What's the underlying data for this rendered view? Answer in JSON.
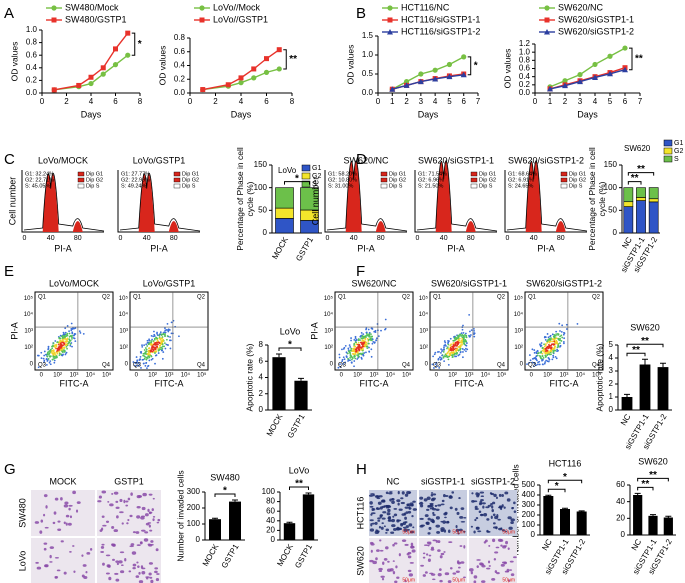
{
  "panel_letters": [
    "A",
    "B",
    "C",
    "D",
    "E",
    "F",
    "G",
    "H"
  ],
  "chart_data": [
    {
      "type": "line",
      "xlabel": "Days",
      "ylabel": "OD values",
      "x": [
        1,
        3,
        4,
        5,
        6,
        7
      ],
      "xlim": [
        0,
        8
      ],
      "xticks": [
        0,
        2,
        4,
        6,
        8
      ],
      "ylim": [
        0,
        1
      ],
      "yticks": [
        {
          "value": 0,
          "label": "0.0"
        },
        0.2,
        0.4,
        0.6,
        0.8,
        {
          "value": 1,
          "label": "1.0"
        }
      ],
      "series": [
        {
          "name": "SW480/Mock",
          "color": "#77c043",
          "marker": "circle",
          "values": [
            0.05,
            0.1,
            0.15,
            0.3,
            0.45,
            0.6
          ]
        },
        {
          "name": "SW480/GSTP1",
          "color": "#e8322b",
          "marker": "square",
          "values": [
            0.05,
            0.12,
            0.25,
            0.4,
            0.7,
            0.95
          ]
        }
      ],
      "annotations": [
        "*"
      ]
    },
    {
      "type": "line",
      "xlabel": "Days",
      "ylabel": "OD values",
      "x": [
        1,
        3,
        4,
        5,
        6,
        7
      ],
      "xlim": [
        0,
        8
      ],
      "xticks": [
        0,
        2,
        4,
        6,
        8
      ],
      "ylim": [
        0,
        0.8
      ],
      "yticks": [
        {
          "value": 0,
          "label": "0.0"
        },
        0.2,
        0.4,
        0.6,
        0.8
      ],
      "series": [
        {
          "name": "LoVo//Mock",
          "color": "#77c043",
          "marker": "circle",
          "values": [
            0.05,
            0.1,
            0.15,
            0.22,
            0.3,
            0.35
          ]
        },
        {
          "name": "LoVo//GSTP1",
          "color": "#e8322b",
          "marker": "square",
          "values": [
            0.05,
            0.12,
            0.22,
            0.35,
            0.5,
            0.63
          ]
        }
      ],
      "annotations": [
        "**"
      ]
    },
    {
      "type": "line",
      "xlabel": "Days",
      "ylabel": "OD values",
      "x": [
        1,
        2,
        3,
        4,
        5,
        6
      ],
      "xlim": [
        0,
        7
      ],
      "xticks": [
        0,
        1,
        2,
        3,
        4,
        5,
        6,
        7
      ],
      "ylim": [
        0,
        1.5
      ],
      "yticks": [
        {
          "value": 0,
          "label": "0.0"
        },
        0.5,
        {
          "value": 1,
          "label": "1.0"
        },
        1.5
      ],
      "series": [
        {
          "name": "HCT116/NC",
          "color": "#77c043",
          "marker": "circle",
          "values": [
            0.1,
            0.3,
            0.5,
            0.6,
            0.75,
            0.95
          ]
        },
        {
          "name": "HCT116/siGSTP1-1",
          "color": "#e8322b",
          "marker": "square",
          "values": [
            0.1,
            0.2,
            0.3,
            0.38,
            0.45,
            0.5
          ]
        },
        {
          "name": "HCT116/siGSTP1-2",
          "color": "#2c3fa0",
          "marker": "triangle",
          "values": [
            0.1,
            0.2,
            0.3,
            0.37,
            0.43,
            0.48
          ]
        }
      ],
      "annotations": [
        "*"
      ]
    },
    {
      "type": "line",
      "xlabel": "Days",
      "ylabel": "OD values",
      "x": [
        1,
        2,
        3,
        4,
        5,
        6
      ],
      "xlim": [
        0,
        7
      ],
      "xticks": [
        0,
        1,
        2,
        3,
        4,
        5,
        6,
        7
      ],
      "ylim": [
        0,
        1.2
      ],
      "yticks": [
        {
          "value": 0,
          "label": "0.0"
        },
        0.2,
        0.4,
        0.6,
        0.8,
        {
          "value": 1,
          "label": "1.0"
        },
        1.2
      ],
      "series": [
        {
          "name": "SW620/NC",
          "color": "#77c043",
          "marker": "circle",
          "values": [
            0.15,
            0.3,
            0.45,
            0.7,
            0.9,
            1.1
          ]
        },
        {
          "name": "SW620/siGSTP1-1",
          "color": "#e8322b",
          "marker": "square",
          "values": [
            0.1,
            0.2,
            0.3,
            0.4,
            0.5,
            0.62
          ]
        },
        {
          "name": "SW620/siGSTP1-2",
          "color": "#2c3fa0",
          "marker": "triangle",
          "values": [
            0.1,
            0.18,
            0.28,
            0.38,
            0.47,
            0.57
          ]
        }
      ],
      "annotations": [
        "**"
      ]
    },
    {
      "type": "stacked_bar",
      "title": "LoVo",
      "ylabel": "Percentage of Phase in cell cycle (%)",
      "categories": [
        "MOCK",
        "GSTP1"
      ],
      "ylim": [
        0,
        150
      ],
      "yticks": [
        0,
        50,
        100,
        150
      ],
      "legend": "top-right",
      "series": [
        {
          "name": "G1",
          "color": "#2f55c6",
          "values": [
            32.24,
            27.77
          ]
        },
        {
          "name": "G2",
          "color": "#f3e52b",
          "values": [
            22.71,
            22.99
          ]
        },
        {
          "name": "S",
          "color": "#6cc04a",
          "values": [
            45.05,
            49.24
          ]
        }
      ],
      "annotations": [
        "*"
      ]
    },
    {
      "type": "stacked_bar",
      "title": "SW620",
      "ylabel": "Percentage of Phase in cell cycle (%)",
      "categories": [
        "NC",
        "siGSTP1-1",
        "siGSTP1-2"
      ],
      "ylim": [
        0,
        150
      ],
      "yticks": [
        0,
        50,
        100,
        150
      ],
      "legend": "right",
      "series": [
        {
          "name": "G1",
          "color": "#2f55c6",
          "values": [
            58.2,
            71.54,
            68.64
          ]
        },
        {
          "name": "G2",
          "color": "#f3e52b",
          "values": [
            10.8,
            6.96,
            6.91
          ]
        },
        {
          "name": "S",
          "color": "#6cc04a",
          "values": [
            31.0,
            21.5,
            24.65
          ]
        }
      ],
      "annotations": [
        "**",
        "**"
      ]
    },
    {
      "type": "bar",
      "title": "LoVo",
      "ylabel": "Apoptotic rate (%)",
      "color": "#000000",
      "categories": [
        "MOCK",
        "GSTP1"
      ],
      "values": [
        6.5,
        3.6
      ],
      "errors": [
        0.4,
        0.3
      ],
      "ylim": [
        0,
        8
      ],
      "yticks": [
        0,
        2,
        4,
        6,
        8
      ],
      "annotations": [
        "*"
      ]
    },
    {
      "type": "bar",
      "title": "SW620",
      "ylabel": "Apoptotic rate (%)",
      "color": "#000000",
      "categories": [
        "NC",
        "siGSTP1-1",
        "siGSTP1-2"
      ],
      "values": [
        1.0,
        3.5,
        3.3
      ],
      "errors": [
        0.2,
        0.4,
        0.3
      ],
      "ylim": [
        0,
        5
      ],
      "yticks": [
        0,
        1,
        2,
        3,
        4,
        5
      ],
      "annotations": [
        "**",
        "**"
      ]
    },
    {
      "type": "bar",
      "title": "SW480",
      "ylabel": "Number of invaded cells",
      "color": "#000000",
      "categories": [
        "MOCK",
        "GSTP1"
      ],
      "values": [
        130,
        240
      ],
      "errors": [
        6,
        10
      ],
      "ylim": [
        0,
        300
      ],
      "yticks": [
        0,
        100,
        200,
        300
      ],
      "annotations": [
        "*"
      ]
    },
    {
      "type": "bar",
      "title": "LoVo",
      "ylabel": null,
      "color": "#000000",
      "categories": [
        "MOCK",
        "GSTP1"
      ],
      "values": [
        35,
        95
      ],
      "errors": [
        2,
        3
      ],
      "ylim": [
        0,
        100
      ],
      "yticks": [
        0,
        20,
        40,
        60,
        80,
        100
      ],
      "annotations": [
        "**"
      ]
    },
    {
      "type": "bar",
      "title": "HCT116",
      "ylabel": "Number of invaded cells",
      "color": "#000000",
      "categories": [
        "NC",
        "siGSTP1-1",
        "siGSTP1-2"
      ],
      "values": [
        390,
        260,
        235
      ],
      "errors": [
        8,
        7,
        6
      ],
      "ylim": [
        0,
        500
      ],
      "yticks": [
        0,
        100,
        200,
        300,
        400,
        500
      ],
      "annotations": [
        "*",
        "*"
      ]
    },
    {
      "type": "bar",
      "title": "SW620",
      "ylabel": null,
      "color": "#000000",
      "categories": [
        "NC",
        "siGSTP1-1",
        "siGSTP1-2"
      ],
      "values": [
        48,
        23,
        21
      ],
      "errors": [
        2,
        1.5,
        1.5
      ],
      "ylim": [
        0,
        60
      ],
      "yticks": [
        0,
        20,
        40,
        60
      ],
      "annotations": [
        "**",
        "**"
      ]
    }
  ],
  "flow": {
    "ylabel": "Cell number",
    "xlabel": "PI-A",
    "xticks": [
      "0",
      "40",
      "80"
    ],
    "legend": [
      "Dip G1",
      "Dip G2",
      "Dip S"
    ],
    "panels": [
      {
        "title": "LoVo/MOCK",
        "stats": [
          "G1: 32.24%",
          "G2: 22.71%",
          "S: 45.05%"
        ]
      },
      {
        "title": "LoVo/GSTP1",
        "stats": [
          "G1: 27.77%",
          "G2: 22.99%",
          "S: 49.24%"
        ]
      },
      {
        "title": "SW620/NC",
        "stats": [
          "G1: 58.20%",
          "G2: 10.80%",
          "S: 31.00%"
        ]
      },
      {
        "title": "SW620/siGSTP1-1",
        "stats": [
          "G1: 71.54%",
          "G2: 6.96%",
          "S: 21.50%"
        ]
      },
      {
        "title": "SW620/siGSTP1-2",
        "stats": [
          "G1: 68.64%",
          "G2: 6.91%",
          "S: 24.65%"
        ]
      }
    ]
  },
  "dot": {
    "ylabel": "PI-A",
    "xlabel": "FITC-A",
    "quadrants": [
      "Q1",
      "Q2",
      "Q3",
      "Q4"
    ],
    "xticks": [
      "0",
      "10²",
      "10³",
      "10⁴",
      "10⁵"
    ],
    "yticks": [
      "10⁵",
      "10⁴",
      "10³",
      "10²",
      "0"
    ],
    "panels": [
      "LoVo/MOCK",
      "LoVo/GSTP1",
      "SW620/NC",
      "SW620/siGSTP1-1",
      "SW620/siGSTP1-2"
    ]
  },
  "images": {
    "G": {
      "cols": [
        "MOCK",
        "GSTP1"
      ],
      "rows": [
        "SW480",
        "LoVo"
      ]
    },
    "H": {
      "cols": [
        "NC",
        "siGSTP1-1",
        "siGSTP1-2"
      ],
      "rows": [
        "HCT116",
        "SW620"
      ],
      "scale": "50μm"
    }
  }
}
